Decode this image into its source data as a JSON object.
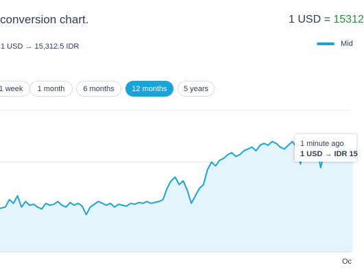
{
  "header": {
    "title": "conversion chart.",
    "rate_prefix": "1 USD = ",
    "rate_value": "15312",
    "sub_rate": "1 USD → 15,312.5 IDR"
  },
  "legend": {
    "label": "Mid",
    "color": "#1aa3d9"
  },
  "tabs": [
    {
      "label": "1 week",
      "active": false
    },
    {
      "label": "1 month",
      "active": false
    },
    {
      "label": "6 months",
      "active": false
    },
    {
      "label": "12 months",
      "active": true
    },
    {
      "label": "5 years",
      "active": false
    }
  ],
  "tooltip": {
    "time": "1 minute ago",
    "rate": "1 USD → IDR 15"
  },
  "chart_data": {
    "type": "area",
    "series": [
      {
        "color": "#1aa3d9",
        "values": [
          14550,
          14555,
          14560,
          14600,
          14580,
          14620,
          14560,
          14590,
          14570,
          14575,
          14560,
          14550,
          14580,
          14570,
          14575,
          14590,
          14570,
          14560,
          14585,
          14570,
          14580,
          14565,
          14520,
          14560,
          14575,
          14590,
          14580,
          14570,
          14580,
          14560,
          14575,
          14570,
          14565,
          14580,
          14575,
          14585,
          14580,
          14590,
          14580,
          14585,
          14590,
          14600,
          14660,
          14700,
          14720,
          14680,
          14700,
          14650,
          14580,
          14620,
          14660,
          14680,
          14760,
          14800,
          14780,
          14810,
          14820,
          14840,
          14850,
          14830,
          14840,
          14860,
          14870,
          14880,
          14860,
          14890,
          14900,
          14890,
          14910,
          14900,
          14880,
          14870,
          14890,
          14910,
          14880,
          14790,
          14870,
          14860,
          14880,
          14890,
          14770,
          14860,
          14870,
          14880,
          14860,
          14870,
          14890,
          14900,
          14920
        ]
      }
    ],
    "ylim": [
      14320,
      15080
    ],
    "gridline": 14800,
    "x_tick_labels": [
      "Oc"
    ]
  }
}
